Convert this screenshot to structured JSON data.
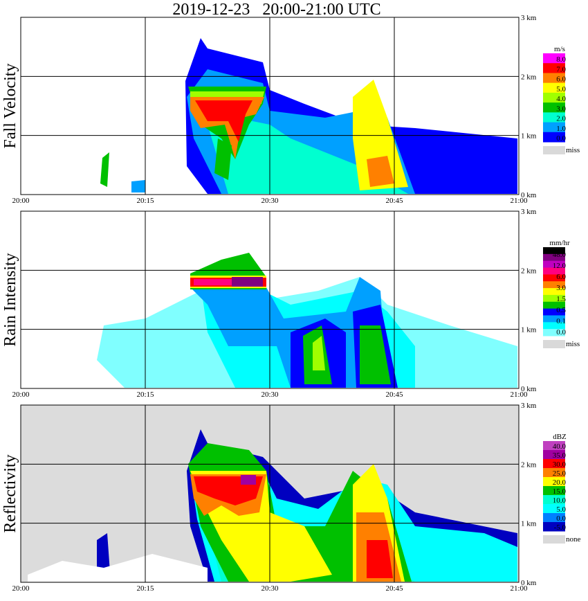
{
  "title": "2019-12-23   20:00-21:00 UTC",
  "chart_data": [
    {
      "type": "heatmap",
      "panel_label": "Fall Velocity",
      "x_tick_labels": [
        "20:00",
        "20:15",
        "20:30",
        "20:45",
        "21:00"
      ],
      "y_tick_labels": [
        "0 km",
        "1 km",
        "2 km",
        "3 km"
      ],
      "xlim": [
        "20:00",
        "21:00"
      ],
      "ylim": [
        0,
        3.0
      ],
      "colorbar": {
        "unit": "m/s",
        "labels": [
          "8.0",
          "7.0",
          "6.0",
          "5.0",
          "4.0",
          "3.0",
          "2.0",
          "1.0",
          "0.0"
        ],
        "colors": [
          "#ff00ff",
          "#ff0000",
          "#ff8000",
          "#ffff00",
          "#a0ff00",
          "#00c000",
          "#00ffd0",
          "#00a0ff",
          "#0000ff"
        ],
        "missing_label": "miss",
        "missing_color": "#d9d9d9"
      }
    },
    {
      "type": "heatmap",
      "panel_label": "Rain Intensity",
      "x_tick_labels": [
        "20:00",
        "20:15",
        "20:30",
        "20:45",
        "21:00"
      ],
      "y_tick_labels": [
        "0 km",
        "1 km",
        "2 km",
        "3 km"
      ],
      "xlim": [
        "20:00",
        "21:00"
      ],
      "ylim": [
        0,
        3.0
      ],
      "colorbar": {
        "unit": "mm/hr",
        "labels": [
          "48.0",
          "12.0",
          "6.0",
          "3.0",
          "1.5",
          "0.5",
          "0.1",
          "0.0"
        ],
        "colors": [
          "#000000",
          "#800080",
          "#c000c0",
          "#ff0080",
          "#ff0000",
          "#ff8000",
          "#ffff00",
          "#a0ff00",
          "#00c000",
          "#0000ff",
          "#00a0ff",
          "#00ffff",
          "#80ffff"
        ],
        "missing_label": "miss",
        "missing_color": "#d9d9d9"
      }
    },
    {
      "type": "heatmap",
      "panel_label": "Reflectivity",
      "x_tick_labels": [
        "20:00",
        "20:15",
        "20:30",
        "20:45",
        "21:00"
      ],
      "y_tick_labels": [
        "0 km",
        "1 km",
        "2 km",
        "3 km"
      ],
      "xlim": [
        "20:00",
        "21:00"
      ],
      "ylim": [
        0,
        3.0
      ],
      "colorbar": {
        "unit": "dBZ",
        "labels": [
          "40.0",
          "35.0",
          "30.0",
          "25.0",
          "20.0",
          "15.0",
          "10.0",
          "5.0",
          "0.0",
          "-5.0"
        ],
        "colors": [
          "#c040c0",
          "#a000a0",
          "#ff0000",
          "#ff8000",
          "#ffff00",
          "#00c000",
          "#00ffd0",
          "#00ffff",
          "#0080ff",
          "#0000c0"
        ],
        "missing_label": "none",
        "missing_color": "#d9d9d9"
      }
    }
  ]
}
